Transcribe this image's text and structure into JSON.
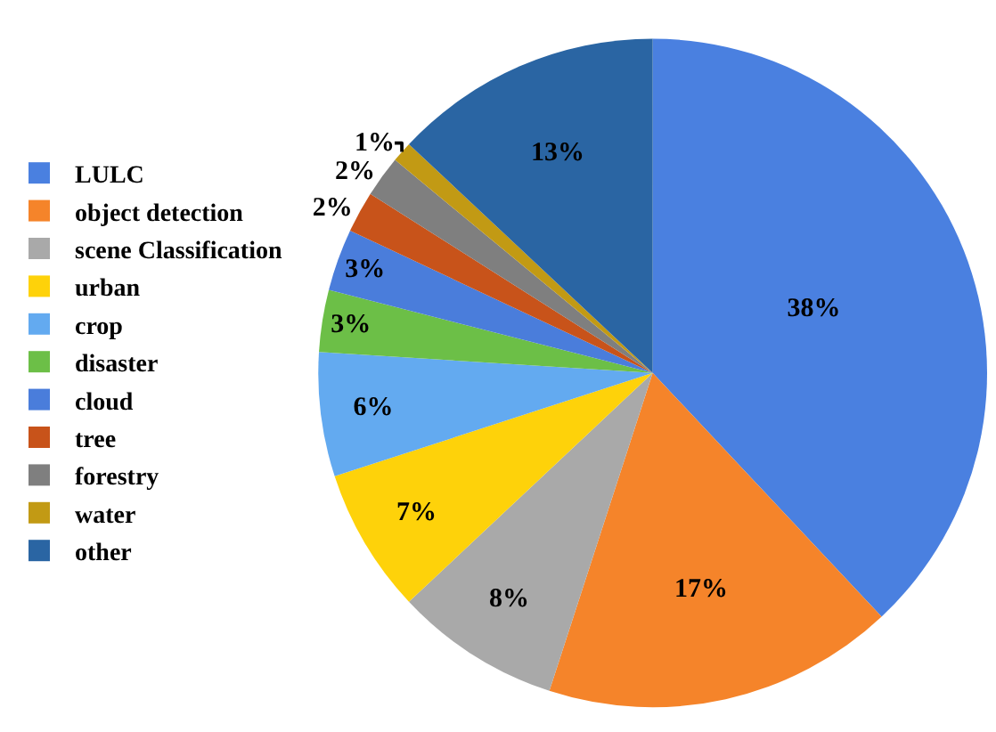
{
  "chart_data": {
    "type": "pie",
    "categories": [
      "LULC",
      "object detection",
      "scene Classification",
      "urban",
      "crop",
      "disaster",
      "cloud",
      "tree",
      "forestry",
      "water",
      "other"
    ],
    "values": [
      38,
      17,
      8,
      7,
      6,
      3,
      3,
      2,
      2,
      1,
      13
    ],
    "value_labels": [
      "38%",
      "17%",
      "8%",
      "7%",
      "6%",
      "3%",
      "3%",
      "2%",
      "2%",
      "1%",
      "13%"
    ],
    "colors": [
      "#4a80e0",
      "#f5842a",
      "#a9a9a9",
      "#fed20a",
      "#63aaf0",
      "#6cbf47",
      "#4a7ddb",
      "#c8531a",
      "#7f7f7f",
      "#c29a14",
      "#2a65a3"
    ],
    "legend": "left"
  }
}
